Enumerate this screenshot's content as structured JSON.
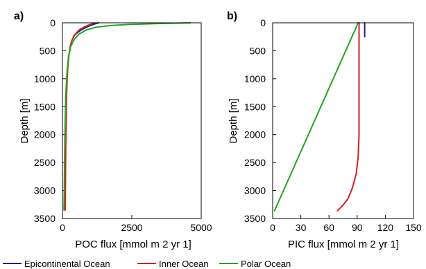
{
  "chart_data": [
    {
      "panel": "a)",
      "type": "line",
      "xlabel": "POC flux [mmol m 2 yr 1]",
      "ylabel": "Depth [m]",
      "xlim": [
        0,
        5000
      ],
      "ylim": [
        0,
        3500
      ],
      "y_inverted": true,
      "xticks": [
        0,
        2500,
        5000
      ],
      "yticks": [
        0,
        500,
        1000,
        1500,
        2000,
        2500,
        3000,
        3500
      ],
      "grid": false,
      "series": [
        {
          "name": "Epicontinental Ocean",
          "color": "#1f1f8f",
          "points": [
            [
              1300,
              0
            ],
            [
              1100,
              30
            ],
            [
              900,
              70
            ],
            [
              700,
              120
            ],
            [
              560,
              170
            ],
            [
              480,
              200
            ],
            [
              400,
              240
            ]
          ]
        },
        {
          "name": "Inner Ocean",
          "color": "#d42020",
          "points": [
            [
              1150,
              0
            ],
            [
              1000,
              30
            ],
            [
              800,
              70
            ],
            [
              620,
              120
            ],
            [
              520,
              170
            ],
            [
              440,
              220
            ],
            [
              380,
              270
            ],
            [
              330,
              330
            ],
            [
              280,
              420
            ],
            [
              240,
              550
            ],
            [
              200,
              750
            ],
            [
              170,
              1000
            ],
            [
              150,
              1300
            ],
            [
              135,
              1700
            ],
            [
              120,
              2200
            ],
            [
              110,
              2800
            ],
            [
              100,
              3350
            ]
          ]
        },
        {
          "name": "Polar Ocean",
          "color": "#22a422",
          "points": [
            [
              4600,
              0
            ],
            [
              3300,
              15
            ],
            [
              2400,
              30
            ],
            [
              1700,
              50
            ],
            [
              1200,
              80
            ],
            [
              850,
              130
            ],
            [
              600,
              200
            ],
            [
              420,
              300
            ],
            [
              300,
              420
            ],
            [
              220,
              600
            ],
            [
              170,
              850
            ],
            [
              130,
              1200
            ],
            [
              100,
              1700
            ],
            [
              80,
              2300
            ],
            [
              65,
              3000
            ],
            [
              55,
              3350
            ]
          ]
        }
      ]
    },
    {
      "panel": "b)",
      "type": "line",
      "xlabel": "PIC flux [mmol m 2 yr 1]",
      "ylabel": "Depth [m]",
      "xlim": [
        0,
        150
      ],
      "ylim": [
        0,
        3500
      ],
      "y_inverted": true,
      "xticks": [
        0,
        30,
        60,
        90,
        120,
        150
      ],
      "yticks": [
        0,
        500,
        1000,
        1500,
        2000,
        2500,
        3000,
        3500
      ],
      "grid": false,
      "series": [
        {
          "name": "Epicontinental Ocean",
          "color": "#1f1f8f",
          "points": [
            [
              98,
              0
            ],
            [
              98,
              250
            ]
          ]
        },
        {
          "name": "Inner Ocean",
          "color": "#d42020",
          "points": [
            [
              92,
              0
            ],
            [
              92,
              500
            ],
            [
              92,
              1000
            ],
            [
              92,
              1500
            ],
            [
              92,
              2000
            ],
            [
              91,
              2400
            ],
            [
              89,
              2700
            ],
            [
              85,
              2950
            ],
            [
              80,
              3150
            ],
            [
              74,
              3280
            ],
            [
              69,
              3360
            ]
          ]
        },
        {
          "name": "Polar Ocean",
          "color": "#22a422",
          "points": [
            [
              91,
              0
            ],
            [
              2,
              3360
            ]
          ]
        }
      ]
    }
  ],
  "legend": {
    "placement": "bottom",
    "items": [
      {
        "label": "Epicontinental Ocean",
        "color": "#1f1f8f"
      },
      {
        "label": "Inner Ocean",
        "color": "#d42020"
      },
      {
        "label": "Polar Ocean",
        "color": "#22a422"
      }
    ]
  }
}
